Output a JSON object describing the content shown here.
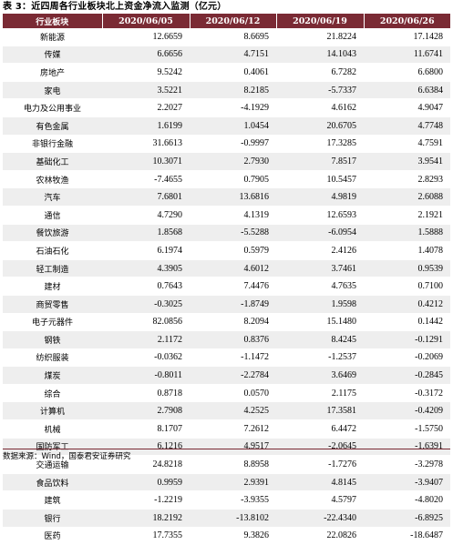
{
  "caption": "表 3：近四周各行业板块北上资金净流入监测（亿元）",
  "headers": [
    "行业板块",
    "2020/06/05",
    "2020/06/12",
    "2020/06/19",
    "2020/06/26"
  ],
  "rows": [
    [
      "新能源",
      "12.6659",
      "8.6695",
      "21.8224",
      "17.1428"
    ],
    [
      "传媒",
      "6.6656",
      "4.7151",
      "14.1043",
      "11.6741"
    ],
    [
      "房地产",
      "9.5242",
      "0.4061",
      "6.7282",
      "6.6800"
    ],
    [
      "家电",
      "3.5221",
      "8.2185",
      "-5.7337",
      "6.6384"
    ],
    [
      "电力及公用事业",
      "2.2027",
      "-4.1929",
      "4.6162",
      "4.9047"
    ],
    [
      "有色金属",
      "1.6199",
      "1.0454",
      "20.6705",
      "4.7748"
    ],
    [
      "非银行金融",
      "31.6613",
      "-0.9997",
      "17.3285",
      "4.7591"
    ],
    [
      "基础化工",
      "10.3071",
      "2.7930",
      "7.8517",
      "3.9541"
    ],
    [
      "农林牧渔",
      "-7.4655",
      "0.7905",
      "10.5457",
      "2.8293"
    ],
    [
      "汽车",
      "7.6801",
      "13.6816",
      "4.9819",
      "2.6088"
    ],
    [
      "通信",
      "4.7290",
      "4.1319",
      "12.6593",
      "2.1921"
    ],
    [
      "餐饮旅游",
      "1.8568",
      "-5.5288",
      "-6.0954",
      "1.5888"
    ],
    [
      "石油石化",
      "6.1974",
      "0.5979",
      "2.4126",
      "1.4078"
    ],
    [
      "轻工制造",
      "4.3905",
      "4.6012",
      "3.7461",
      "0.9539"
    ],
    [
      "建材",
      "0.7643",
      "7.4476",
      "4.7635",
      "0.7100"
    ],
    [
      "商贸零售",
      "-0.3025",
      "-1.8749",
      "1.9598",
      "0.4212"
    ],
    [
      "电子元器件",
      "82.0856",
      "8.2094",
      "15.1480",
      "0.1442"
    ],
    [
      "钢铁",
      "2.1172",
      "0.8376",
      "8.4245",
      "-0.1291"
    ],
    [
      "纺织服装",
      "-0.0362",
      "-1.1472",
      "-1.2537",
      "-0.2069"
    ],
    [
      "煤炭",
      "-0.8011",
      "-2.2784",
      "3.6469",
      "-0.2845"
    ],
    [
      "综合",
      "0.8718",
      "0.0570",
      "2.1175",
      "-0.3172"
    ],
    [
      "计算机",
      "2.7908",
      "4.2525",
      "17.3581",
      "-0.4209"
    ],
    [
      "机械",
      "8.1707",
      "7.2612",
      "6.4472",
      "-1.5750"
    ],
    [
      "国防军工",
      "6.1216",
      "4.9517",
      "-2.0645",
      "-1.6391"
    ],
    [
      "交通运输",
      "24.8218",
      "8.8958",
      "-1.7276",
      "-3.2978"
    ],
    [
      "食品饮料",
      "0.9959",
      "2.9391",
      "4.8145",
      "-3.9407"
    ],
    [
      "建筑",
      "-1.2219",
      "-3.9355",
      "4.5797",
      "-4.8020"
    ],
    [
      "银行",
      "18.2192",
      "-13.8102",
      "-22.4340",
      "-6.8925"
    ],
    [
      "医药",
      "17.7355",
      "9.3826",
      "22.0826",
      "-18.6487"
    ]
  ],
  "source": "数据来源：Wind，国泰君安证券研究",
  "colors": {
    "header_bg": "#7a2a34",
    "stripe": "#eeeeee"
  }
}
